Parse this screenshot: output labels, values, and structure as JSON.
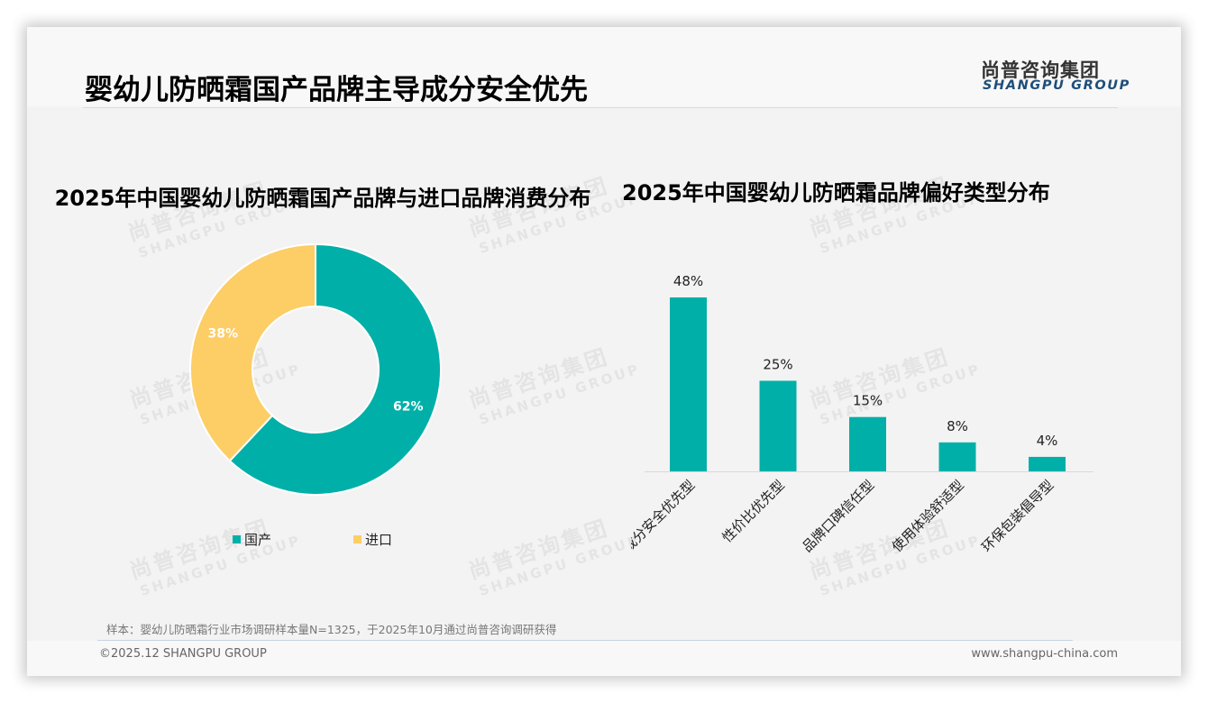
{
  "page": {
    "title": "婴幼儿防晒霜国产品牌主导成分安全优先",
    "logo_cn": "尚普咨询集团",
    "logo_en": "SHANGPU GROUP",
    "sample_note": "样本：婴幼儿防晒霜行业市场调研样本量N=1325，于2025年10月通过尚普咨询调研获得",
    "copyright": "©2025.12 SHANGPU GROUP",
    "website": "www.shangpu-china.com",
    "watermark_cn": "尚普咨询集团",
    "watermark_en": "SHANGPU GROUP"
  },
  "colors": {
    "teal": "#00b0a8",
    "yellow": "#fdcd66",
    "logo_blue": "#1f4e79"
  },
  "chart_data": [
    {
      "type": "pie",
      "title": "2025年中国婴幼儿防晒霜国产品牌与进口品牌消费分布",
      "donut": true,
      "categories": [
        "国产",
        "进口"
      ],
      "values": [
        62,
        38
      ],
      "labels": [
        "62%",
        "38%"
      ],
      "colors": [
        "#00b0a8",
        "#fdcd66"
      ],
      "legend_position": "bottom"
    },
    {
      "type": "bar",
      "title": "2025年中国婴幼儿防晒霜品牌偏好类型分布",
      "categories": [
        "成分安全优先型",
        "性价比优先型",
        "品牌口碑信任型",
        "使用体验舒适型",
        "环保包装倡导型"
      ],
      "values": [
        48,
        25,
        15,
        8,
        4
      ],
      "labels": [
        "48%",
        "25%",
        "15%",
        "8%",
        "4%"
      ],
      "unit": "%",
      "xlabel": "",
      "ylabel": "",
      "ylim": [
        0,
        50
      ],
      "grid": false,
      "color": "#00b0a8"
    }
  ]
}
